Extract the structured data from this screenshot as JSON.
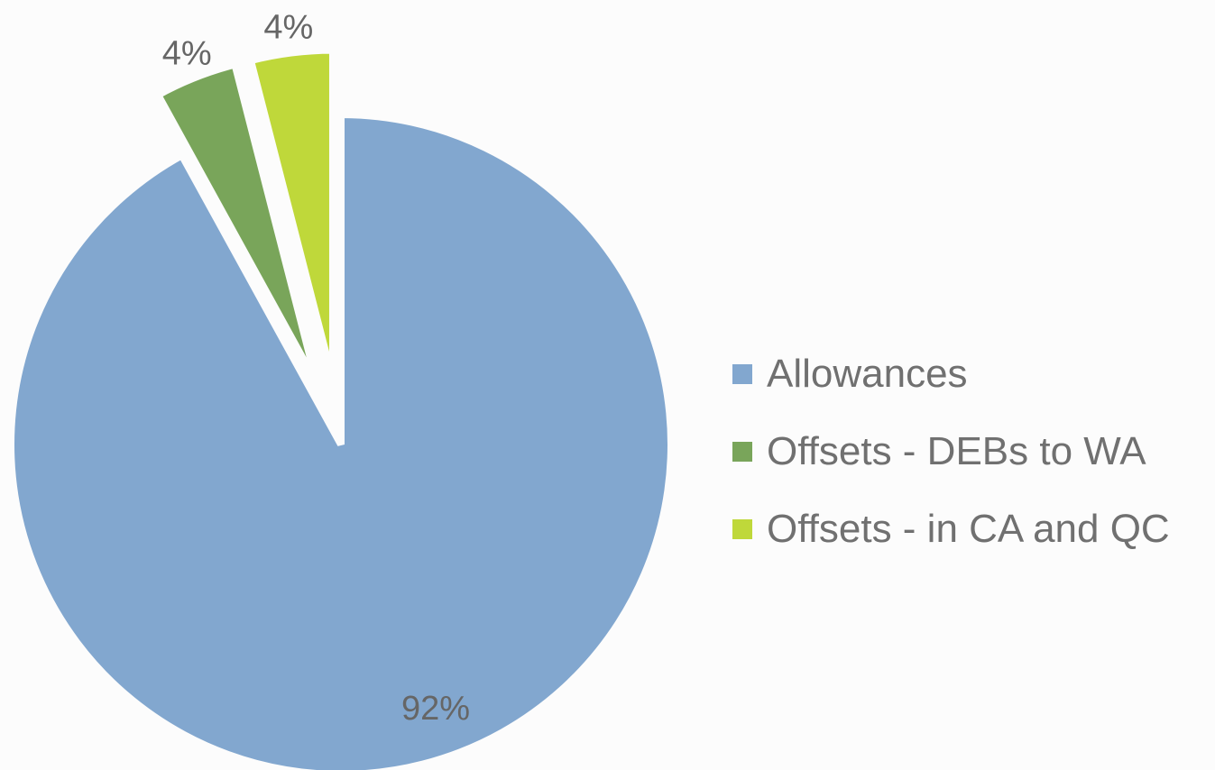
{
  "chart_data": {
    "type": "pie",
    "title": "",
    "start_angle_deg": 0,
    "direction": "clockwise",
    "slices": [
      {
        "label": "Allowances",
        "value": 92,
        "display": "92%",
        "color": "#82a7cf",
        "exploded": false
      },
      {
        "label": "Offsets - DEBs to WA",
        "value": 4,
        "display": "4%",
        "color": "#79a55a",
        "exploded": true
      },
      {
        "label": "Offsets - in CA and QC",
        "value": 4,
        "display": "4%",
        "color": "#bfd83a",
        "exploded": true
      }
    ],
    "legend_position": "right",
    "data_labels": "percent"
  }
}
